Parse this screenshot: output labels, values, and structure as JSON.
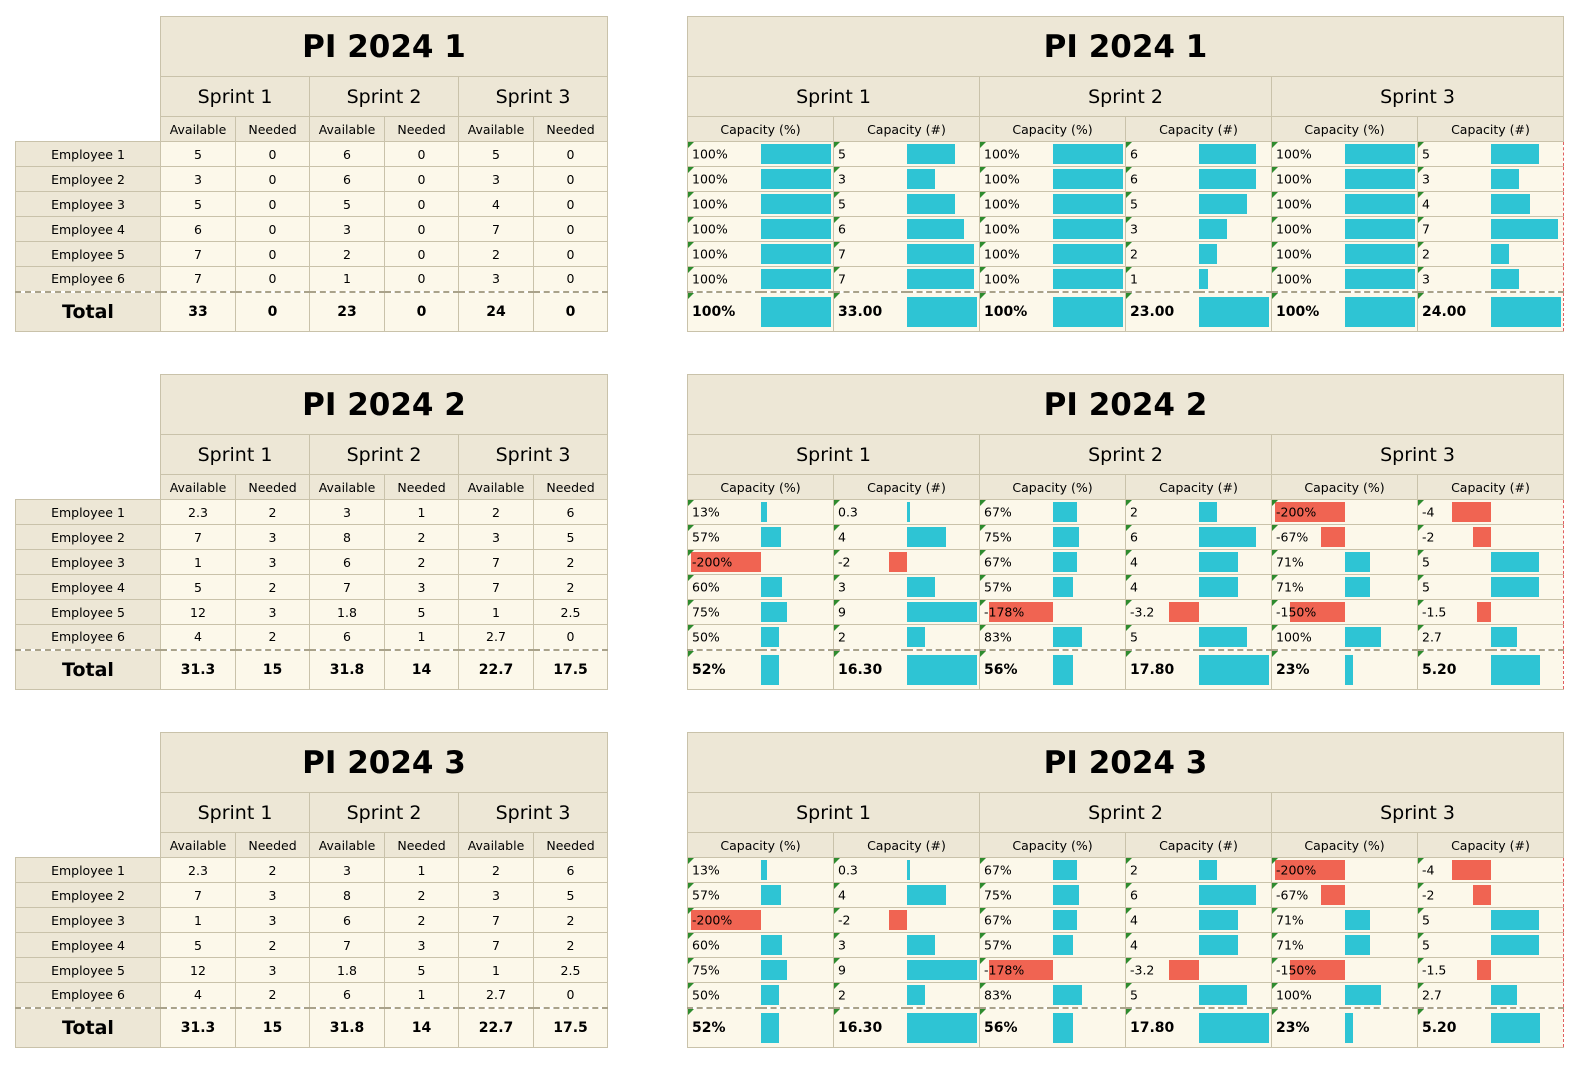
{
  "colors": {
    "header_bg": "#ede7d6",
    "cell_bg": "#fcf8ea",
    "bar_positive": "#2ec4d4",
    "bar_negative": "#f06452"
  },
  "left": [
    {
      "title": "PI 2024 1",
      "sprints": [
        "Sprint 1",
        "Sprint 2",
        "Sprint 3"
      ],
      "sub_labels": [
        "Available",
        "Needed"
      ],
      "rows": [
        {
          "name": "Employee 1",
          "values": [
            "5",
            "0",
            "6",
            "0",
            "5",
            "0"
          ]
        },
        {
          "name": "Employee 2",
          "values": [
            "3",
            "0",
            "6",
            "0",
            "3",
            "0"
          ]
        },
        {
          "name": "Employee 3",
          "values": [
            "5",
            "0",
            "5",
            "0",
            "4",
            "0"
          ]
        },
        {
          "name": "Employee 4",
          "values": [
            "6",
            "0",
            "3",
            "0",
            "7",
            "0"
          ]
        },
        {
          "name": "Employee 5",
          "values": [
            "7",
            "0",
            "2",
            "0",
            "2",
            "0"
          ]
        },
        {
          "name": "Employee 6",
          "values": [
            "7",
            "0",
            "1",
            "0",
            "3",
            "0"
          ]
        }
      ],
      "total_label": "Total",
      "totals": [
        "33",
        "0",
        "23",
        "0",
        "24",
        "0"
      ]
    },
    {
      "title": "PI 2024 2",
      "sprints": [
        "Sprint 1",
        "Sprint 2",
        "Sprint 3"
      ],
      "sub_labels": [
        "Available",
        "Needed"
      ],
      "rows": [
        {
          "name": "Employee 1",
          "values": [
            "2.3",
            "2",
            "3",
            "1",
            "2",
            "6"
          ]
        },
        {
          "name": "Employee 2",
          "values": [
            "7",
            "3",
            "8",
            "2",
            "3",
            "5"
          ]
        },
        {
          "name": "Employee 3",
          "values": [
            "1",
            "3",
            "6",
            "2",
            "7",
            "2"
          ]
        },
        {
          "name": "Employee 4",
          "values": [
            "5",
            "2",
            "7",
            "3",
            "7",
            "2"
          ]
        },
        {
          "name": "Employee 5",
          "values": [
            "12",
            "3",
            "1.8",
            "5",
            "1",
            "2.5"
          ]
        },
        {
          "name": "Employee 6",
          "values": [
            "4",
            "2",
            "6",
            "1",
            "2.7",
            "0"
          ]
        }
      ],
      "total_label": "Total",
      "totals": [
        "31.3",
        "15",
        "31.8",
        "14",
        "22.7",
        "17.5"
      ]
    },
    {
      "title": "PI 2024 3",
      "sprints": [
        "Sprint 1",
        "Sprint 2",
        "Sprint 3"
      ],
      "sub_labels": [
        "Available",
        "Needed"
      ],
      "rows": [
        {
          "name": "Employee 1",
          "values": [
            "2.3",
            "2",
            "3",
            "1",
            "2",
            "6"
          ]
        },
        {
          "name": "Employee 2",
          "values": [
            "7",
            "3",
            "8",
            "2",
            "3",
            "5"
          ]
        },
        {
          "name": "Employee 3",
          "values": [
            "1",
            "3",
            "6",
            "2",
            "7",
            "2"
          ]
        },
        {
          "name": "Employee 4",
          "values": [
            "5",
            "2",
            "7",
            "3",
            "7",
            "2"
          ]
        },
        {
          "name": "Employee 5",
          "values": [
            "12",
            "3",
            "1.8",
            "5",
            "1",
            "2.5"
          ]
        },
        {
          "name": "Employee 6",
          "values": [
            "4",
            "2",
            "6",
            "1",
            "2.7",
            "0"
          ]
        }
      ],
      "total_label": "Total",
      "totals": [
        "31.3",
        "15",
        "31.8",
        "14",
        "22.7",
        "17.5"
      ]
    }
  ],
  "right": [
    {
      "title": "PI 2024 1",
      "sprints": [
        "Sprint 1",
        "Sprint 2",
        "Sprint 3"
      ],
      "sub_labels": [
        "Capacity (%)",
        "Capacity (#)"
      ],
      "rows": [
        [
          {
            "t": "100%",
            "v": 1
          },
          {
            "t": "5",
            "v": 0.68
          },
          {
            "t": "100%",
            "v": 1
          },
          {
            "t": "6",
            "v": 0.82
          },
          {
            "t": "100%",
            "v": 1
          },
          {
            "t": "5",
            "v": 0.68
          }
        ],
        [
          {
            "t": "100%",
            "v": 1
          },
          {
            "t": "3",
            "v": 0.4
          },
          {
            "t": "100%",
            "v": 1
          },
          {
            "t": "6",
            "v": 0.82
          },
          {
            "t": "100%",
            "v": 1
          },
          {
            "t": "3",
            "v": 0.4
          }
        ],
        [
          {
            "t": "100%",
            "v": 1
          },
          {
            "t": "5",
            "v": 0.68
          },
          {
            "t": "100%",
            "v": 1
          },
          {
            "t": "5",
            "v": 0.68
          },
          {
            "t": "100%",
            "v": 1
          },
          {
            "t": "4",
            "v": 0.55
          }
        ],
        [
          {
            "t": "100%",
            "v": 1
          },
          {
            "t": "6",
            "v": 0.82
          },
          {
            "t": "100%",
            "v": 1
          },
          {
            "t": "3",
            "v": 0.4
          },
          {
            "t": "100%",
            "v": 1
          },
          {
            "t": "7",
            "v": 0.96
          }
        ],
        [
          {
            "t": "100%",
            "v": 1
          },
          {
            "t": "7",
            "v": 0.96
          },
          {
            "t": "100%",
            "v": 1
          },
          {
            "t": "2",
            "v": 0.26
          },
          {
            "t": "100%",
            "v": 1
          },
          {
            "t": "2",
            "v": 0.26
          }
        ],
        [
          {
            "t": "100%",
            "v": 1
          },
          {
            "t": "7",
            "v": 0.96
          },
          {
            "t": "100%",
            "v": 1
          },
          {
            "t": "1",
            "v": 0.13
          },
          {
            "t": "100%",
            "v": 1
          },
          {
            "t": "3",
            "v": 0.4
          }
        ]
      ],
      "totals": [
        {
          "t": "100%",
          "v": 1
        },
        {
          "t": "33.00",
          "v": 1
        },
        {
          "t": "100%",
          "v": 1
        },
        {
          "t": "23.00",
          "v": 1
        },
        {
          "t": "100%",
          "v": 1
        },
        {
          "t": "24.00",
          "v": 1
        }
      ]
    },
    {
      "title": "PI 2024 2",
      "sprints": [
        "Sprint 1",
        "Sprint 2",
        "Sprint 3"
      ],
      "sub_labels": [
        "Capacity (%)",
        "Capacity (#)"
      ],
      "rows": [
        [
          {
            "t": "13%",
            "v": 0.08
          },
          {
            "t": "0.3",
            "v": 0.04
          },
          {
            "t": "67%",
            "v": 0.34
          },
          {
            "t": "2",
            "v": 0.26
          },
          {
            "t": "-200%",
            "v": -1
          },
          {
            "t": "-4",
            "v": -0.55
          }
        ],
        [
          {
            "t": "57%",
            "v": 0.29
          },
          {
            "t": "4",
            "v": 0.55
          },
          {
            "t": "75%",
            "v": 0.37
          },
          {
            "t": "6",
            "v": 0.82
          },
          {
            "t": "-67%",
            "v": -0.34
          },
          {
            "t": "-2",
            "v": -0.26
          }
        ],
        [
          {
            "t": "-200%",
            "v": -1
          },
          {
            "t": "-2",
            "v": -0.26
          },
          {
            "t": "67%",
            "v": 0.34
          },
          {
            "t": "4",
            "v": 0.55
          },
          {
            "t": "71%",
            "v": 0.36
          },
          {
            "t": "5",
            "v": 0.68
          }
        ],
        [
          {
            "t": "60%",
            "v": 0.3
          },
          {
            "t": "3",
            "v": 0.4
          },
          {
            "t": "57%",
            "v": 0.29
          },
          {
            "t": "4",
            "v": 0.55
          },
          {
            "t": "71%",
            "v": 0.36
          },
          {
            "t": "5",
            "v": 0.68
          }
        ],
        [
          {
            "t": "75%",
            "v": 0.37
          },
          {
            "t": "9",
            "v": 1
          },
          {
            "t": "-178%",
            "v": -0.92
          },
          {
            "t": "-3.2",
            "v": -0.43
          },
          {
            "t": "-150%",
            "v": -0.78
          },
          {
            "t": "-1.5",
            "v": -0.2
          }
        ],
        [
          {
            "t": "50%",
            "v": 0.26
          },
          {
            "t": "2",
            "v": 0.26
          },
          {
            "t": "83%",
            "v": 0.42
          },
          {
            "t": "5",
            "v": 0.68
          },
          {
            "t": "100%",
            "v": 0.51
          },
          {
            "t": "2.7",
            "v": 0.37
          }
        ]
      ],
      "totals": [
        {
          "t": "52%",
          "v": 0.26
        },
        {
          "t": "16.30",
          "v": 1
        },
        {
          "t": "56%",
          "v": 0.28
        },
        {
          "t": "17.80",
          "v": 1
        },
        {
          "t": "23%",
          "v": 0.11
        },
        {
          "t": "5.20",
          "v": 0.7
        }
      ]
    },
    {
      "title": "PI 2024 3",
      "sprints": [
        "Sprint 1",
        "Sprint 2",
        "Sprint 3"
      ],
      "sub_labels": [
        "Capacity (%)",
        "Capacity (#)"
      ],
      "rows": [
        [
          {
            "t": "13%",
            "v": 0.08
          },
          {
            "t": "0.3",
            "v": 0.04
          },
          {
            "t": "67%",
            "v": 0.34
          },
          {
            "t": "2",
            "v": 0.26
          },
          {
            "t": "-200%",
            "v": -1
          },
          {
            "t": "-4",
            "v": -0.55
          }
        ],
        [
          {
            "t": "57%",
            "v": 0.29
          },
          {
            "t": "4",
            "v": 0.55
          },
          {
            "t": "75%",
            "v": 0.37
          },
          {
            "t": "6",
            "v": 0.82
          },
          {
            "t": "-67%",
            "v": -0.34
          },
          {
            "t": "-2",
            "v": -0.26
          }
        ],
        [
          {
            "t": "-200%",
            "v": -1
          },
          {
            "t": "-2",
            "v": -0.26
          },
          {
            "t": "67%",
            "v": 0.34
          },
          {
            "t": "4",
            "v": 0.55
          },
          {
            "t": "71%",
            "v": 0.36
          },
          {
            "t": "5",
            "v": 0.68
          }
        ],
        [
          {
            "t": "60%",
            "v": 0.3
          },
          {
            "t": "3",
            "v": 0.4
          },
          {
            "t": "57%",
            "v": 0.29
          },
          {
            "t": "4",
            "v": 0.55
          },
          {
            "t": "71%",
            "v": 0.36
          },
          {
            "t": "5",
            "v": 0.68
          }
        ],
        [
          {
            "t": "75%",
            "v": 0.37
          },
          {
            "t": "9",
            "v": 1
          },
          {
            "t": "-178%",
            "v": -0.92
          },
          {
            "t": "-3.2",
            "v": -0.43
          },
          {
            "t": "-150%",
            "v": -0.78
          },
          {
            "t": "-1.5",
            "v": -0.2
          }
        ],
        [
          {
            "t": "50%",
            "v": 0.26
          },
          {
            "t": "2",
            "v": 0.26
          },
          {
            "t": "83%",
            "v": 0.42
          },
          {
            "t": "5",
            "v": 0.68
          },
          {
            "t": "100%",
            "v": 0.51
          },
          {
            "t": "2.7",
            "v": 0.37
          }
        ]
      ],
      "totals": [
        {
          "t": "52%",
          "v": 0.26
        },
        {
          "t": "16.30",
          "v": 1
        },
        {
          "t": "56%",
          "v": 0.28
        },
        {
          "t": "17.80",
          "v": 1
        },
        {
          "t": "23%",
          "v": 0.11
        },
        {
          "t": "5.20",
          "v": 0.7
        }
      ]
    }
  ]
}
